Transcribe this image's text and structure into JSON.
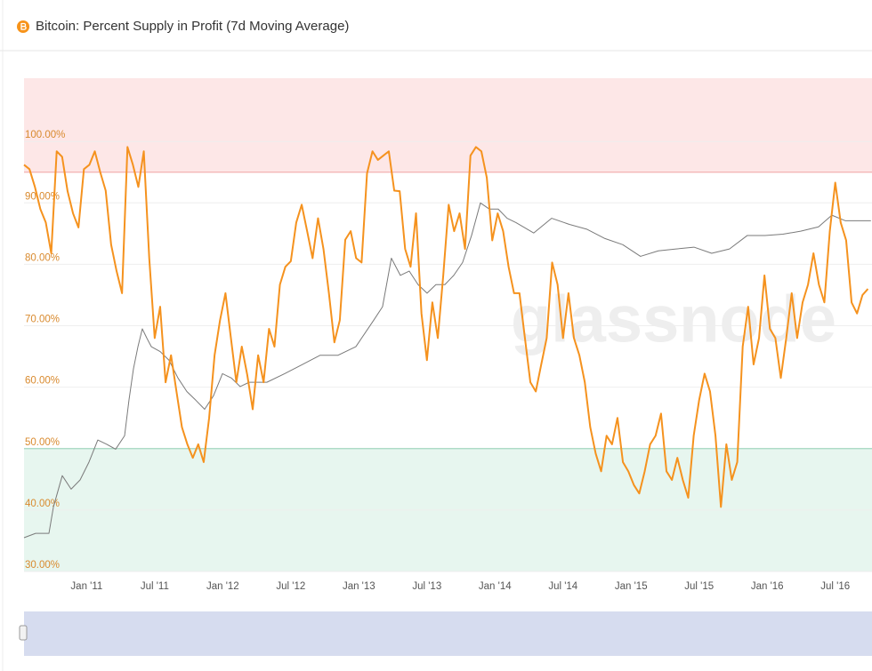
{
  "chart_data": {
    "type": "line",
    "title": "Bitcoin: Percent Supply in Profit (7d Moving Average)",
    "watermark": "glassnode",
    "x": [
      2010.54,
      2010.58,
      2010.62,
      2010.66,
      2010.7,
      2010.74,
      2010.78,
      2010.82,
      2010.86,
      2010.9,
      2010.94,
      2010.98,
      2011.02,
      2011.06,
      2011.1,
      2011.14,
      2011.18,
      2011.22,
      2011.26,
      2011.3,
      2011.34,
      2011.38,
      2011.42,
      2011.46,
      2011.5,
      2011.54,
      2011.58,
      2011.62,
      2011.66,
      2011.7,
      2011.74,
      2011.78,
      2011.82,
      2011.86,
      2011.9,
      2011.94,
      2011.98,
      2012.02,
      2012.06,
      2012.1,
      2012.14,
      2012.18,
      2012.22,
      2012.26,
      2012.3,
      2012.34,
      2012.38,
      2012.42,
      2012.46,
      2012.5,
      2012.54,
      2012.58,
      2012.62,
      2012.66,
      2012.7,
      2012.74,
      2012.78,
      2012.82,
      2012.86,
      2012.9,
      2012.94,
      2012.98,
      2013.02,
      2013.06,
      2013.1,
      2013.14,
      2013.18,
      2013.22,
      2013.26,
      2013.3,
      2013.34,
      2013.38,
      2013.42,
      2013.46,
      2013.5,
      2013.54,
      2013.58,
      2013.62,
      2013.66,
      2013.7,
      2013.74,
      2013.78,
      2013.82,
      2013.86,
      2013.9,
      2013.94,
      2013.98,
      2014.02,
      2014.06,
      2014.1,
      2014.14,
      2014.18,
      2014.22,
      2014.26,
      2014.3,
      2014.34,
      2014.38,
      2014.42,
      2014.46,
      2014.5,
      2014.54,
      2014.58,
      2014.62,
      2014.66,
      2014.7,
      2014.74,
      2014.78,
      2014.82,
      2014.86,
      2014.9,
      2014.94,
      2014.98,
      2015.02,
      2015.06,
      2015.1,
      2015.14,
      2015.18,
      2015.22,
      2015.26,
      2015.3,
      2015.34,
      2015.38,
      2015.42,
      2015.46,
      2015.5,
      2015.54,
      2015.58,
      2015.62,
      2015.66,
      2015.7,
      2015.74,
      2015.78,
      2015.82,
      2015.86,
      2015.9,
      2015.94,
      2015.98,
      2016.02,
      2016.06,
      2016.1,
      2016.14,
      2016.18,
      2016.22,
      2016.26,
      2016.3,
      2016.34,
      2016.38,
      2016.42,
      2016.46,
      2016.5,
      2016.54,
      2016.58,
      2016.62,
      2016.66,
      2016.7,
      2016.74
    ],
    "series": [
      {
        "color": "#f5921e",
        "values": [
          96.2,
          95.5,
          92.6,
          89,
          86.8,
          81.8,
          98.4,
          97.5,
          91.9,
          88.3,
          86,
          95.5,
          96.2,
          98.4,
          95,
          92,
          83.2,
          78.9,
          75.3,
          99.1,
          96.2,
          92.6,
          98.4,
          81,
          68,
          73.1,
          60.8,
          65.2,
          59.3,
          53.5,
          50.7,
          48.5,
          50.7,
          47.8,
          55,
          65.2,
          70.9,
          75.3,
          68,
          60.8,
          66.6,
          62,
          56.4,
          65.2,
          60.8,
          69.5,
          66.6,
          76.7,
          79.6,
          80.5,
          86.8,
          89.7,
          85.4,
          81,
          87.5,
          82.5,
          75.3,
          67.3,
          70.9,
          84,
          85.4,
          81,
          80.3,
          94.8,
          98.4,
          97,
          97.7,
          98.4,
          92,
          91.9,
          82.5,
          79.6,
          88.3,
          72,
          64.4,
          73.8,
          68,
          78.2,
          89.7,
          85.4,
          88.3,
          82.5,
          97.7,
          99.1,
          98.4,
          94.1,
          83.9,
          88.3,
          85.4,
          79.6,
          75.3,
          75.3,
          68,
          60.8,
          59.3,
          63.7,
          68,
          80.3,
          76.7,
          68,
          75.3,
          68,
          65.2,
          60.8,
          53.5,
          49.2,
          46.3,
          52.1,
          50.7,
          55,
          47.8,
          46.3,
          44.1,
          42.7,
          46.3,
          50.7,
          52.1,
          55.7,
          46.3,
          44.9,
          48.5,
          44.9,
          42,
          52.1,
          57.9,
          62.2,
          59.3,
          52.1,
          40.5,
          50.7,
          44.9,
          47.8,
          66.6,
          73.1,
          63.7,
          68,
          78.2,
          69.5,
          68,
          61.5,
          68,
          75.3,
          68,
          73.8,
          76.7,
          81.8,
          76.7,
          73.8,
          85.4,
          93.3,
          86.8,
          83.9,
          73.8,
          72,
          75,
          76
        ]
      },
      {
        "color": "#7a7a7a",
        "x": [
          2010.54,
          2010.625,
          2010.723,
          2010.756,
          2010.821,
          2010.886,
          2010.952,
          2011.017,
          2011.082,
          2011.148,
          2011.213,
          2011.279,
          2011.311,
          2011.344,
          2011.377,
          2011.409,
          2011.442,
          2011.475,
          2011.54,
          2011.605,
          2011.671,
          2011.736,
          2011.801,
          2011.867,
          2011.932,
          2011.998,
          2012.063,
          2012.128,
          2012.194,
          2012.324,
          2012.455,
          2012.586,
          2012.716,
          2012.847,
          2012.978,
          2013.109,
          2013.174,
          2013.239,
          2013.305,
          2013.37,
          2013.435,
          2013.501,
          2013.566,
          2013.632,
          2013.697,
          2013.762,
          2013.828,
          2013.893,
          2013.958,
          2014.024,
          2014.089,
          2014.154,
          2014.285,
          2014.416,
          2014.547,
          2014.677,
          2014.808,
          2014.939,
          2015.069,
          2015.2,
          2015.331,
          2015.462,
          2015.592,
          2015.723,
          2015.854,
          2015.984,
          2016.115,
          2016.246,
          2016.377,
          2016.475,
          2016.573,
          2016.762
        ],
        "values": [
          35.5,
          36.2,
          36.2,
          40.5,
          45.6,
          43.4,
          44.9,
          47.8,
          51.4,
          50.7,
          49.9,
          52.1,
          57.9,
          63,
          66.6,
          69.5,
          68,
          66.6,
          65.8,
          64.4,
          61.5,
          59.3,
          57.9,
          56.4,
          58.6,
          62.2,
          61.5,
          60.1,
          60.8,
          60.8,
          62.2,
          63.7,
          65.2,
          65.2,
          66.6,
          70.9,
          73.1,
          81,
          78.2,
          78.9,
          76.7,
          75.3,
          76.7,
          76.7,
          78.2,
          80.3,
          84.7,
          90,
          89,
          89,
          87.5,
          86.8,
          85.1,
          87.5,
          86.5,
          85.7,
          84.2,
          83.2,
          81.3,
          82.2,
          82.5,
          82.8,
          81.8,
          82.5,
          84.7,
          84.7,
          84.9,
          85.4,
          86.1,
          88,
          87.1,
          87.1
        ]
      }
    ],
    "xlim": [
      2010.54,
      2016.77
    ],
    "xticks": [
      {
        "value": 2011,
        "label": "Jan '11"
      },
      {
        "value": 2011.5,
        "label": "Jul '11"
      },
      {
        "value": 2012,
        "label": "Jan '12"
      },
      {
        "value": 2012.5,
        "label": "Jul '12"
      },
      {
        "value": 2013,
        "label": "Jan '13"
      },
      {
        "value": 2013.5,
        "label": "Jul '13"
      },
      {
        "value": 2014,
        "label": "Jan '14"
      },
      {
        "value": 2014.5,
        "label": "Jul '14"
      },
      {
        "value": 2015,
        "label": "Jan '15"
      },
      {
        "value": 2015.5,
        "label": "Jul '15"
      },
      {
        "value": 2016,
        "label": "Jan '16"
      },
      {
        "value": 2016.5,
        "label": "Jul '16"
      }
    ],
    "ylim": [
      30,
      110.3
    ],
    "yticks": [
      {
        "value": 30,
        "label": "30.00%"
      },
      {
        "value": 40,
        "label": "40.00%"
      },
      {
        "value": 50,
        "label": "50.00%"
      },
      {
        "value": 60,
        "label": "60.00%"
      },
      {
        "value": 70,
        "label": "70.00%"
      },
      {
        "value": 80,
        "label": "80.00%"
      },
      {
        "value": 90,
        "label": "90.00%"
      },
      {
        "value": 100,
        "label": "100.00%"
      }
    ],
    "grid": true,
    "upper_threshold": 95,
    "upper_band_color": "#fde7e7",
    "upper_line_color": "#f2b0b0",
    "lower_threshold": 50,
    "lower_band_color": "#e7f6ef",
    "lower_line_color": "#a3d9c0"
  }
}
